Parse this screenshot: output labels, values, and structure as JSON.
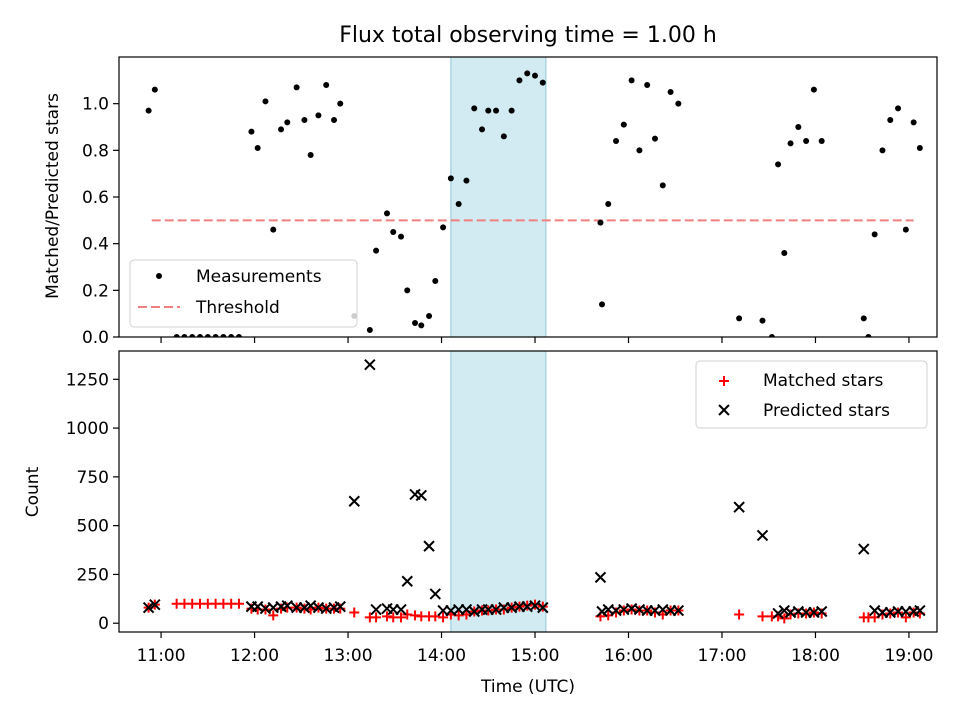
{
  "figure_title": "Flux total observing time = 1.00 h",
  "colors": {
    "measurement": "#000000",
    "threshold": "#f08080",
    "matched": "#ff0000",
    "predicted": "#000000",
    "highlight": "#add8e6"
  },
  "chart_data": [
    {
      "type": "scatter",
      "title": "Flux total observing time = 1.00 h",
      "xlabel": "",
      "ylabel": "Matched/Predicted stars",
      "xlim": [
        "10:33",
        "19:18"
      ],
      "ylim": [
        0,
        1.2
      ],
      "yticks": [
        "0.0",
        "0.2",
        "0.4",
        "0.6",
        "0.8",
        "1.0"
      ],
      "grid": false,
      "legend": {
        "placement": "lower-left",
        "entries": [
          "Measurements",
          "Threshold"
        ]
      },
      "highlight_span": [
        "14:06",
        "15:07"
      ],
      "threshold": {
        "name": "Threshold",
        "x": [
          "10:54",
          "19:03"
        ],
        "y": 0.5
      },
      "series": [
        {
          "name": "Measurements",
          "points": [
            [
              "10:52",
              0.97
            ],
            [
              "10:56",
              1.06
            ],
            [
              "11:10",
              0.0
            ],
            [
              "11:15",
              0.0
            ],
            [
              "11:20",
              0.0
            ],
            [
              "11:25",
              0.0
            ],
            [
              "11:30",
              0.0
            ],
            [
              "11:35",
              0.0
            ],
            [
              "11:40",
              0.0
            ],
            [
              "11:45",
              0.0
            ],
            [
              "11:50",
              0.0
            ],
            [
              "11:58",
              0.88
            ],
            [
              "12:02",
              0.81
            ],
            [
              "12:07",
              1.01
            ],
            [
              "12:12",
              0.46
            ],
            [
              "12:17",
              0.89
            ],
            [
              "12:21",
              0.92
            ],
            [
              "12:27",
              1.07
            ],
            [
              "12:32",
              0.93
            ],
            [
              "12:36",
              0.78
            ],
            [
              "12:41",
              0.95
            ],
            [
              "12:46",
              1.08
            ],
            [
              "12:51",
              0.93
            ],
            [
              "12:55",
              1.0
            ],
            [
              "13:04",
              0.09
            ],
            [
              "13:14",
              0.03
            ],
            [
              "13:18",
              0.37
            ],
            [
              "13:25",
              0.53
            ],
            [
              "13:29",
              0.45
            ],
            [
              "13:34",
              0.43
            ],
            [
              "13:38",
              0.2
            ],
            [
              "13:43",
              0.06
            ],
            [
              "13:47",
              0.05
            ],
            [
              "13:52",
              0.09
            ],
            [
              "13:56",
              0.24
            ],
            [
              "14:01",
              0.47
            ],
            [
              "14:06",
              0.68
            ],
            [
              "14:11",
              0.57
            ],
            [
              "14:16",
              0.67
            ],
            [
              "14:21",
              0.98
            ],
            [
              "14:26",
              0.89
            ],
            [
              "14:30",
              0.97
            ],
            [
              "14:35",
              0.97
            ],
            [
              "14:40",
              0.86
            ],
            [
              "14:45",
              0.97
            ],
            [
              "14:50",
              1.1
            ],
            [
              "14:55",
              1.13
            ],
            [
              "15:00",
              1.12
            ],
            [
              "15:05",
              1.09
            ],
            [
              "15:42",
              0.49
            ],
            [
              "15:43",
              0.14
            ],
            [
              "15:47",
              0.57
            ],
            [
              "15:52",
              0.84
            ],
            [
              "15:57",
              0.91
            ],
            [
              "16:02",
              1.1
            ],
            [
              "16:07",
              0.8
            ],
            [
              "16:12",
              1.08
            ],
            [
              "16:17",
              0.85
            ],
            [
              "16:22",
              0.65
            ],
            [
              "16:27",
              1.05
            ],
            [
              "16:32",
              1.0
            ],
            [
              "17:11",
              0.08
            ],
            [
              "17:26",
              0.07
            ],
            [
              "17:32",
              0.0
            ],
            [
              "17:36",
              0.74
            ],
            [
              "17:40",
              0.36
            ],
            [
              "17:44",
              0.83
            ],
            [
              "17:49",
              0.9
            ],
            [
              "17:54",
              0.84
            ],
            [
              "17:59",
              1.06
            ],
            [
              "18:04",
              0.84
            ],
            [
              "18:31",
              0.08
            ],
            [
              "18:34",
              0.0
            ],
            [
              "18:38",
              0.44
            ],
            [
              "18:43",
              0.8
            ],
            [
              "18:48",
              0.93
            ],
            [
              "18:53",
              0.98
            ],
            [
              "18:58",
              0.46
            ],
            [
              "19:03",
              0.92
            ],
            [
              "19:07",
              0.81
            ]
          ]
        }
      ]
    },
    {
      "type": "scatter",
      "title": "",
      "xlabel": "Time (UTC)",
      "ylabel": "Count",
      "xlim": [
        "10:33",
        "19:18"
      ],
      "ylim": [
        -45,
        1395
      ],
      "yticks": [
        "0",
        "250",
        "500",
        "750",
        "1000",
        "1250"
      ],
      "xticks": [
        "11:00",
        "12:00",
        "13:00",
        "14:00",
        "15:00",
        "16:00",
        "17:00",
        "18:00",
        "19:00"
      ],
      "grid": false,
      "legend": {
        "placement": "upper-right",
        "entries": [
          "Matched stars",
          "Predicted stars"
        ]
      },
      "highlight_span": [
        "14:06",
        "15:07"
      ],
      "series": [
        {
          "name": "Matched stars",
          "points": [
            [
              "10:52",
              80
            ],
            [
              "10:56",
              95
            ],
            [
              "11:10",
              100
            ],
            [
              "11:15",
              100
            ],
            [
              "11:20",
              100
            ],
            [
              "11:25",
              100
            ],
            [
              "11:30",
              100
            ],
            [
              "11:35",
              100
            ],
            [
              "11:40",
              100
            ],
            [
              "11:45",
              100
            ],
            [
              "11:50",
              100
            ],
            [
              "11:58",
              75
            ],
            [
              "12:02",
              70
            ],
            [
              "12:07",
              70
            ],
            [
              "12:12",
              40
            ],
            [
              "12:17",
              75
            ],
            [
              "12:21",
              80
            ],
            [
              "12:27",
              80
            ],
            [
              "12:32",
              75
            ],
            [
              "12:36",
              70
            ],
            [
              "12:41",
              80
            ],
            [
              "12:46",
              75
            ],
            [
              "12:51",
              75
            ],
            [
              "12:55",
              75
            ],
            [
              "13:04",
              55
            ],
            [
              "13:14",
              30
            ],
            [
              "13:18",
              30
            ],
            [
              "13:25",
              35
            ],
            [
              "13:29",
              30
            ],
            [
              "13:34",
              30
            ],
            [
              "13:38",
              45
            ],
            [
              "13:43",
              40
            ],
            [
              "13:47",
              35
            ],
            [
              "13:52",
              35
            ],
            [
              "13:56",
              35
            ],
            [
              "14:01",
              30
            ],
            [
              "14:06",
              45
            ],
            [
              "14:11",
              40
            ],
            [
              "14:16",
              45
            ],
            [
              "14:21",
              60
            ],
            [
              "14:26",
              65
            ],
            [
              "14:30",
              65
            ],
            [
              "14:35",
              70
            ],
            [
              "14:40",
              70
            ],
            [
              "14:45",
              80
            ],
            [
              "14:50",
              85
            ],
            [
              "14:55",
              90
            ],
            [
              "15:00",
              95
            ],
            [
              "15:05",
              85
            ],
            [
              "15:42",
              35
            ],
            [
              "15:47",
              40
            ],
            [
              "15:52",
              55
            ],
            [
              "15:57",
              65
            ],
            [
              "16:02",
              70
            ],
            [
              "16:07",
              65
            ],
            [
              "16:12",
              65
            ],
            [
              "16:17",
              55
            ],
            [
              "16:22",
              45
            ],
            [
              "16:27",
              65
            ],
            [
              "16:32",
              65
            ],
            [
              "17:11",
              45
            ],
            [
              "17:26",
              35
            ],
            [
              "17:32",
              35
            ],
            [
              "17:36",
              35
            ],
            [
              "17:40",
              25
            ],
            [
              "17:44",
              45
            ],
            [
              "17:49",
              50
            ],
            [
              "17:54",
              50
            ],
            [
              "17:59",
              55
            ],
            [
              "18:04",
              50
            ],
            [
              "18:31",
              30
            ],
            [
              "18:34",
              30
            ],
            [
              "18:38",
              30
            ],
            [
              "18:43",
              45
            ],
            [
              "18:48",
              50
            ],
            [
              "18:53",
              55
            ],
            [
              "18:58",
              30
            ],
            [
              "19:03",
              55
            ],
            [
              "19:07",
              50
            ]
          ]
        },
        {
          "name": "Predicted stars",
          "points": [
            [
              "10:52",
              80
            ],
            [
              "10:56",
              95
            ],
            [
              "11:58",
              85
            ],
            [
              "12:02",
              85
            ],
            [
              "12:07",
              75
            ],
            [
              "12:12",
              80
            ],
            [
              "12:17",
              85
            ],
            [
              "12:21",
              90
            ],
            [
              "12:27",
              80
            ],
            [
              "12:32",
              80
            ],
            [
              "12:36",
              90
            ],
            [
              "12:41",
              80
            ],
            [
              "12:46",
              75
            ],
            [
              "12:51",
              80
            ],
            [
              "12:55",
              85
            ],
            [
              "13:04",
              625
            ],
            [
              "13:14",
              1325
            ],
            [
              "13:18",
              70
            ],
            [
              "13:25",
              75
            ],
            [
              "13:29",
              70
            ],
            [
              "13:34",
              70
            ],
            [
              "13:38",
              215
            ],
            [
              "13:43",
              660
            ],
            [
              "13:47",
              655
            ],
            [
              "13:52",
              395
            ],
            [
              "13:56",
              150
            ],
            [
              "14:01",
              65
            ],
            [
              "14:06",
              65
            ],
            [
              "14:11",
              70
            ],
            [
              "14:16",
              70
            ],
            [
              "14:21",
              60
            ],
            [
              "14:26",
              70
            ],
            [
              "14:30",
              70
            ],
            [
              "14:35",
              70
            ],
            [
              "14:40",
              80
            ],
            [
              "14:45",
              80
            ],
            [
              "14:50",
              85
            ],
            [
              "14:55",
              85
            ],
            [
              "15:00",
              90
            ],
            [
              "15:05",
              80
            ],
            [
              "15:42",
              235
            ],
            [
              "15:43",
              60
            ],
            [
              "15:47",
              70
            ],
            [
              "15:52",
              65
            ],
            [
              "15:57",
              70
            ],
            [
              "16:02",
              75
            ],
            [
              "16:07",
              70
            ],
            [
              "16:12",
              65
            ],
            [
              "16:17",
              65
            ],
            [
              "16:22",
              70
            ],
            [
              "16:27",
              65
            ],
            [
              "16:32",
              65
            ],
            [
              "17:11",
              595
            ],
            [
              "17:26",
              450
            ],
            [
              "17:36",
              50
            ],
            [
              "17:40",
              65
            ],
            [
              "17:44",
              55
            ],
            [
              "17:49",
              60
            ],
            [
              "17:54",
              55
            ],
            [
              "17:59",
              55
            ],
            [
              "18:04",
              60
            ],
            [
              "18:31",
              380
            ],
            [
              "18:38",
              65
            ],
            [
              "18:43",
              55
            ],
            [
              "18:48",
              55
            ],
            [
              "18:53",
              60
            ],
            [
              "18:58",
              60
            ],
            [
              "19:03",
              60
            ],
            [
              "19:07",
              65
            ]
          ]
        }
      ]
    }
  ]
}
